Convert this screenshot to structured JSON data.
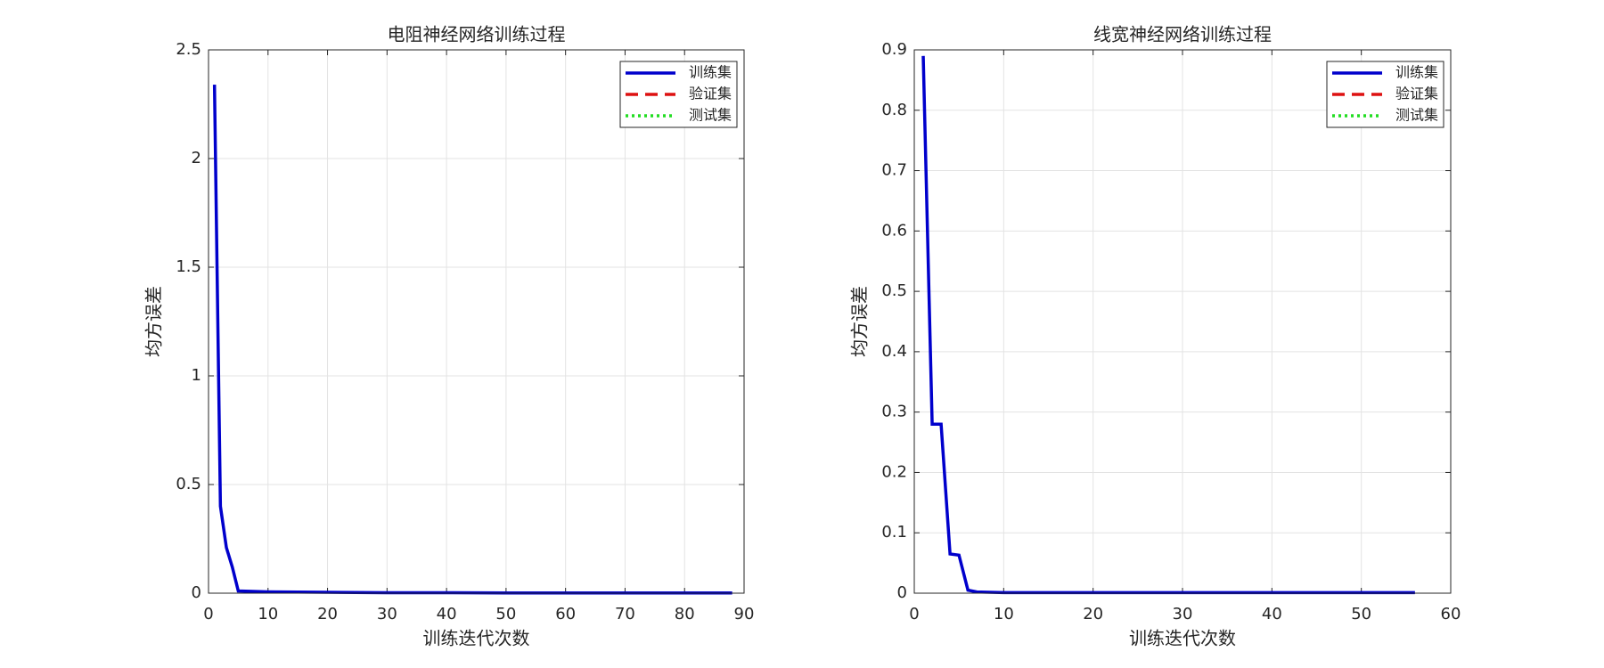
{
  "chart_data": [
    {
      "type": "line",
      "title": "电阻神经网络训练过程",
      "x_label": "训练迭代次数",
      "y_label": "均方误差",
      "xlim": [
        0,
        90
      ],
      "xticks": [
        0,
        10,
        20,
        30,
        40,
        50,
        60,
        70,
        80,
        90
      ],
      "ylim": [
        0,
        2.5
      ],
      "yticks": [
        0,
        0.5,
        1,
        1.5,
        2,
        2.5
      ],
      "grid": true,
      "legend": "northeast",
      "series": [
        {
          "name": "训练集",
          "color": "#0000cc",
          "style": "solid",
          "x": [
            1,
            2,
            3,
            4,
            5,
            10,
            20,
            30,
            40,
            50,
            60,
            70,
            80,
            88
          ],
          "values": [
            2.34,
            0.4,
            0.21,
            0.12,
            0.01,
            0.006,
            0.004,
            0.002,
            0.002,
            0.001,
            0.001,
            0.001,
            0.001,
            0.001
          ]
        },
        {
          "name": "验证集",
          "color": "#dd1111",
          "style": "dashed",
          "x": [],
          "values": []
        },
        {
          "name": "测试集",
          "color": "#22dd22",
          "style": "dotted",
          "x": [],
          "values": []
        }
      ]
    },
    {
      "type": "line",
      "title": "线宽神经网络训练过程",
      "x_label": "训练迭代次数",
      "y_label": "均方误差",
      "xlim": [
        0,
        60
      ],
      "xticks": [
        0,
        10,
        20,
        30,
        40,
        50,
        60
      ],
      "ylim": [
        0,
        0.9
      ],
      "yticks": [
        0,
        0.1,
        0.2,
        0.3,
        0.4,
        0.5,
        0.6,
        0.7,
        0.8,
        0.9
      ],
      "grid": true,
      "legend": "northeast",
      "series": [
        {
          "name": "训练集",
          "color": "#0000cc",
          "style": "solid",
          "x": [
            1,
            2,
            3,
            4,
            5,
            6,
            7,
            10,
            20,
            30,
            40,
            50,
            56
          ],
          "values": [
            0.89,
            0.28,
            0.28,
            0.065,
            0.063,
            0.005,
            0.002,
            0.001,
            0.001,
            0.001,
            0.001,
            0.001,
            0.001
          ]
        },
        {
          "name": "验证集",
          "color": "#dd1111",
          "style": "dashed",
          "x": [],
          "values": []
        },
        {
          "name": "测试集",
          "color": "#22dd22",
          "style": "dotted",
          "x": [],
          "values": []
        }
      ]
    }
  ]
}
